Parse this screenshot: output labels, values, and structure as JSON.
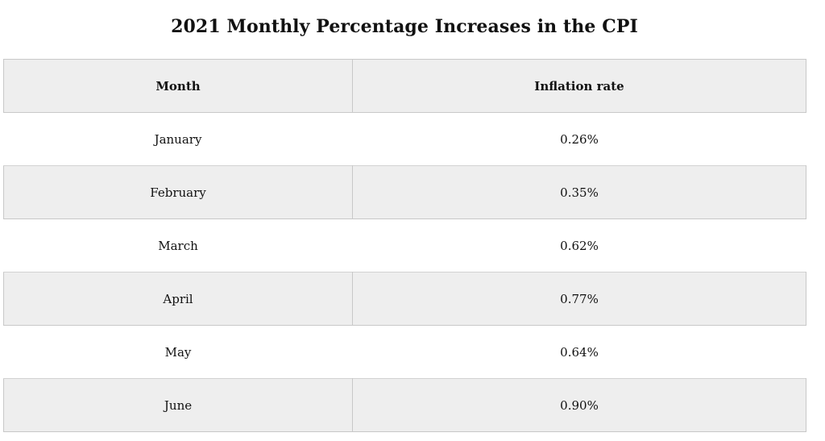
{
  "chart_data": {
    "type": "table",
    "title": "2021 Monthly Percentage Increases in the CPI",
    "columns": [
      "Month",
      "Inflation rate"
    ],
    "rows": [
      {
        "month": "January",
        "rate_label": "0.26%",
        "rate": 0.26
      },
      {
        "month": "February",
        "rate_label": "0.35%",
        "rate": 0.35
      },
      {
        "month": "March",
        "rate_label": "0.62%",
        "rate": 0.62
      },
      {
        "month": "April",
        "rate_label": "0.77%",
        "rate": 0.77
      },
      {
        "month": "May",
        "rate_label": "0.64%",
        "rate": 0.64
      },
      {
        "month": "June",
        "rate_label": "0.90%",
        "rate": 0.9
      }
    ]
  },
  "colors": {
    "header_background": "#eeeeee",
    "stripe_background": "#eeeeee",
    "row_background": "#ffffff",
    "border": "#c8c8c8",
    "text": "#111111"
  }
}
